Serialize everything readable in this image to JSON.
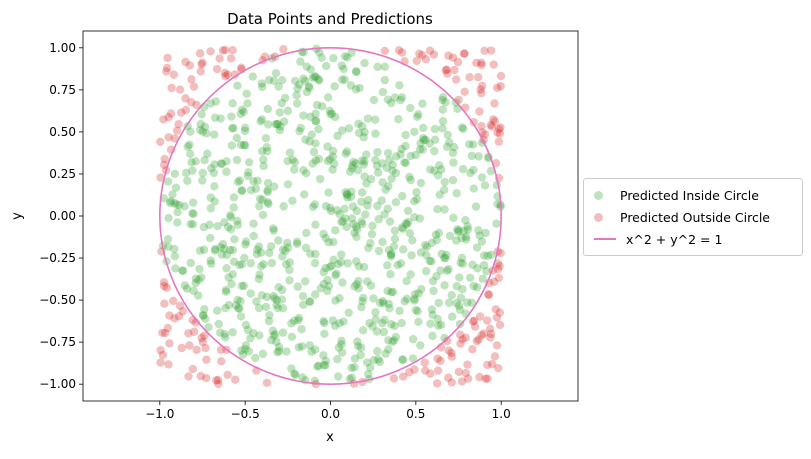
{
  "chart_data": {
    "type": "scatter",
    "title": "Data Points and Predictions",
    "xlabel": "x",
    "ylabel": "y",
    "xlim": [
      -1.45,
      1.45
    ],
    "ylim": [
      -1.1,
      1.1
    ],
    "xticks": [
      -1.0,
      -0.5,
      0.0,
      0.5,
      1.0
    ],
    "xtick_labels": [
      "−1.0",
      "−0.5",
      "0.0",
      "0.5",
      "1.0"
    ],
    "yticks": [
      -1.0,
      -0.75,
      -0.5,
      -0.25,
      0.0,
      0.25,
      0.5,
      0.75,
      1.0
    ],
    "ytick_labels": [
      "−1.00",
      "−0.75",
      "−0.50",
      "−0.25",
      "0.00",
      "0.25",
      "0.50",
      "0.75",
      "1.00"
    ],
    "grid": false,
    "legend_position": "center-left outside right",
    "series": [
      {
        "name": "Predicted Inside Circle",
        "kind": "points",
        "color": "#2ca02c",
        "alpha": 0.3,
        "region": "inside",
        "count": 780
      },
      {
        "name": "Predicted Outside Circle",
        "kind": "points",
        "color": "#d62728",
        "alpha": 0.3,
        "region": "outside",
        "count": 215
      },
      {
        "name": "x^2 + y^2 = 1",
        "kind": "curve",
        "color": "#e377c2",
        "equation": "x^2 + y^2 = 1",
        "radius": 1.0
      }
    ],
    "points_domain": {
      "x": [
        -1.0,
        1.0
      ],
      "y": [
        -1.0,
        1.0
      ]
    }
  }
}
